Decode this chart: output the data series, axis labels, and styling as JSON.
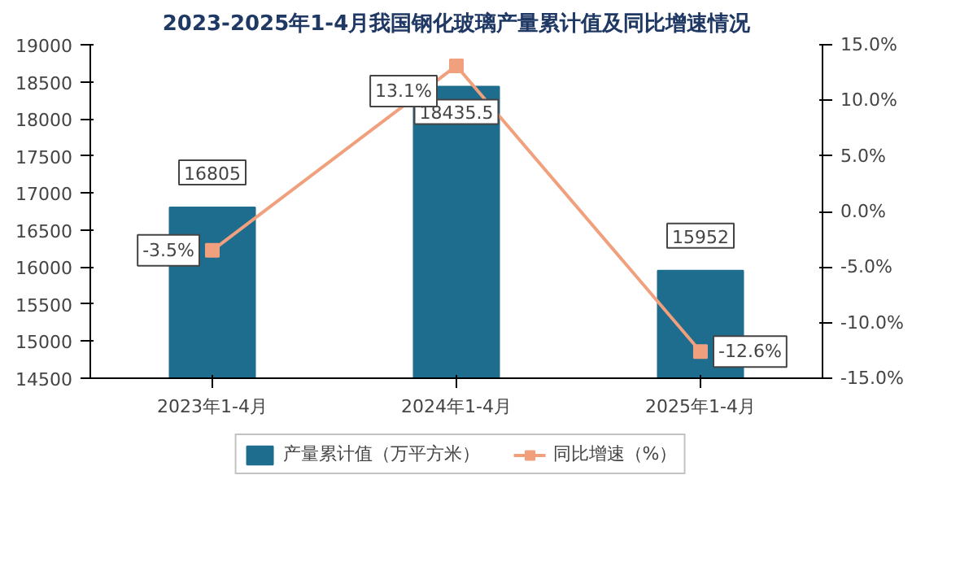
{
  "chart_data": {
    "type": "bar",
    "title": "2023-2025年1-4月我国钢化玻璃产量累计值及同比增速情况",
    "categories": [
      "2023年1-4月",
      "2024年1-4月",
      "2025年1-4月"
    ],
    "series": [
      {
        "name": "产量累计值（万平方米）",
        "color": "#1f6d8e",
        "values": [
          16805,
          18435.5,
          15952
        ],
        "value_labels": [
          "16805",
          "18435.5",
          "15952"
        ]
      },
      {
        "name": "同比增速（%）",
        "type": "line",
        "axis": "y2",
        "color": "#f0a07c",
        "marker": "square",
        "values": [
          -3.5,
          13.1,
          -12.6
        ],
        "value_labels": [
          "-3.5%",
          "13.1%",
          "-12.6%"
        ]
      }
    ],
    "ylim": [
      14500,
      19000
    ],
    "yticks": [
      14500,
      15000,
      15500,
      16000,
      16500,
      17000,
      17500,
      18000,
      18500,
      19000
    ],
    "y2lim": [
      -15,
      15
    ],
    "y2ticks": [
      {
        "value": -15,
        "label": "-15.0%"
      },
      {
        "value": -10,
        "label": "-10.0%"
      },
      {
        "value": -5,
        "label": "-5.0%"
      },
      {
        "value": 0,
        "label": "0.0%"
      },
      {
        "value": 5,
        "label": "5.0%"
      },
      {
        "value": 10,
        "label": "10.0%"
      },
      {
        "value": 15,
        "label": "15.0%"
      }
    ],
    "grid": false,
    "legend": "bottom"
  }
}
